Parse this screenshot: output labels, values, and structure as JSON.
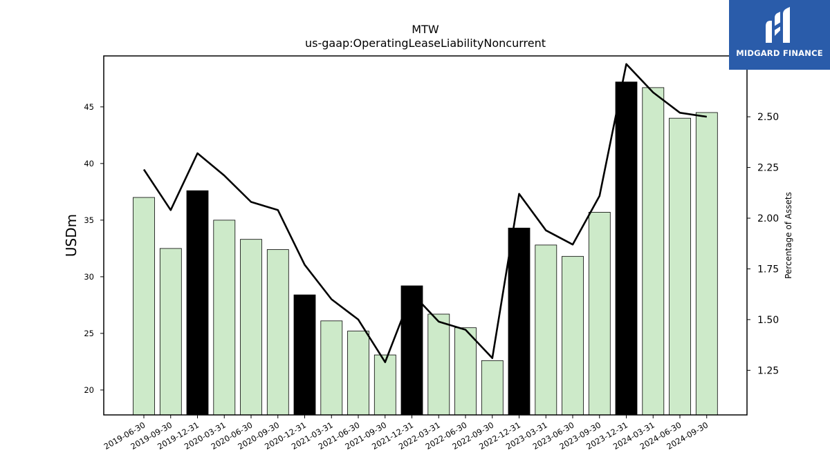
{
  "chart_data": {
    "type": "bar",
    "title": "MTW",
    "subtitle": "us-gaap:OperatingLeaseLiabilityNoncurrent",
    "ylabel": "USDm",
    "y2label": "Percentage of Assets",
    "ylim": [
      17.8,
      49.5
    ],
    "y2lim": [
      1.03,
      2.8
    ],
    "yticks": [
      20,
      25,
      30,
      35,
      40,
      45
    ],
    "y2ticks": [
      1.25,
      1.5,
      1.75,
      2.0,
      2.25,
      2.5,
      2.75
    ],
    "y2tick_labels": [
      "1.25",
      "1.50",
      "1.75",
      "2.00",
      "2.25",
      "2.50",
      "2.75"
    ],
    "grid": false,
    "categories": [
      "2019-06-30",
      "2019-09-30",
      "2019-12-31",
      "2020-03-31",
      "2020-06-30",
      "2020-09-30",
      "2020-12-31",
      "2021-03-31",
      "2021-06-30",
      "2021-09-30",
      "2021-12-31",
      "2022-03-31",
      "2022-06-30",
      "2022-09-30",
      "2022-12-31",
      "2023-03-31",
      "2023-06-30",
      "2023-09-30",
      "2023-12-31",
      "2024-03-31",
      "2024-06-30",
      "2024-09-30"
    ],
    "series": [
      {
        "kind": "bar",
        "values": [
          37.0,
          32.5,
          37.6,
          35.0,
          33.3,
          32.4,
          28.4,
          26.1,
          25.2,
          23.1,
          29.2,
          26.7,
          25.5,
          22.6,
          34.3,
          32.8,
          31.8,
          35.7,
          47.2,
          46.7,
          44.0,
          44.5
        ]
      },
      {
        "kind": "line",
        "axis": "right",
        "values": [
          2.24,
          2.04,
          2.32,
          2.21,
          2.08,
          2.04,
          1.77,
          1.6,
          1.5,
          1.29,
          1.63,
          1.49,
          1.45,
          1.31,
          2.12,
          1.94,
          1.87,
          2.11,
          2.76,
          2.62,
          2.52,
          2.5
        ]
      }
    ],
    "highlight_categories": [
      "2019-12-31",
      "2020-12-31",
      "2021-12-31",
      "2022-12-31",
      "2023-12-31"
    ],
    "colors": {
      "bar": "#cdeac9",
      "bar_highlight": "#000000",
      "line": "#000000",
      "edge": "#000000"
    }
  },
  "logo": {
    "text": "MIDGARD FINANCE",
    "color": "#2a5caa"
  }
}
